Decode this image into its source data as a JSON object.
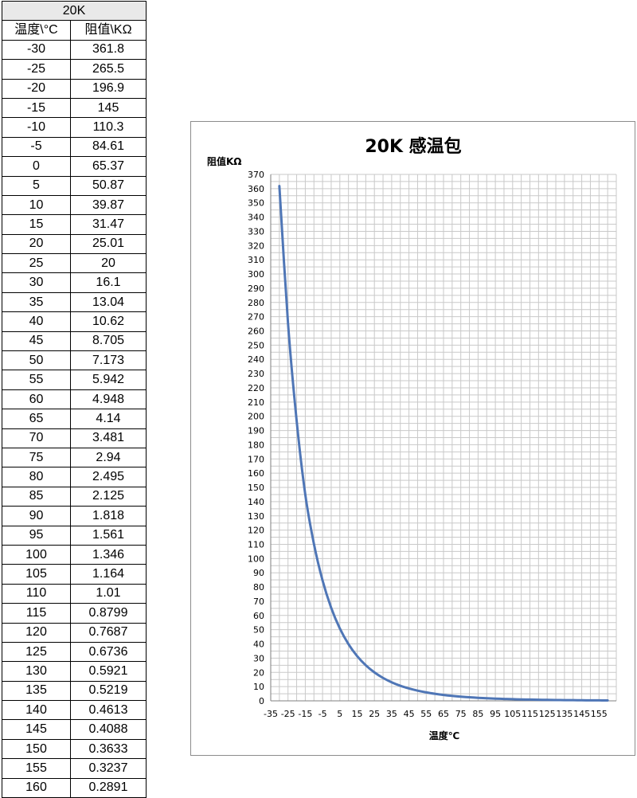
{
  "table": {
    "title": "20K",
    "headers": [
      "温度\\°C",
      "阻值\\KΩ"
    ],
    "rows": [
      [
        "-30",
        "361.8"
      ],
      [
        "-25",
        "265.5"
      ],
      [
        "-20",
        "196.9"
      ],
      [
        "-15",
        "145"
      ],
      [
        "-10",
        "110.3"
      ],
      [
        "-5",
        "84.61"
      ],
      [
        "0",
        "65.37"
      ],
      [
        "5",
        "50.87"
      ],
      [
        "10",
        "39.87"
      ],
      [
        "15",
        "31.47"
      ],
      [
        "20",
        "25.01"
      ],
      [
        "25",
        "20"
      ],
      [
        "30",
        "16.1"
      ],
      [
        "35",
        "13.04"
      ],
      [
        "40",
        "10.62"
      ],
      [
        "45",
        "8.705"
      ],
      [
        "50",
        "7.173"
      ],
      [
        "55",
        "5.942"
      ],
      [
        "60",
        "4.948"
      ],
      [
        "65",
        "4.14"
      ],
      [
        "70",
        "3.481"
      ],
      [
        "75",
        "2.94"
      ],
      [
        "80",
        "2.495"
      ],
      [
        "85",
        "2.125"
      ],
      [
        "90",
        "1.818"
      ],
      [
        "95",
        "1.561"
      ],
      [
        "100",
        "1.346"
      ],
      [
        "105",
        "1.164"
      ],
      [
        "110",
        "1.01"
      ],
      [
        "115",
        "0.8799"
      ],
      [
        "120",
        "0.7687"
      ],
      [
        "125",
        "0.6736"
      ],
      [
        "130",
        "0.5921"
      ],
      [
        "135",
        "0.5219"
      ],
      [
        "140",
        "0.4613"
      ],
      [
        "145",
        "0.4088"
      ],
      [
        "150",
        "0.3633"
      ],
      [
        "155",
        "0.3237"
      ],
      [
        "160",
        "0.2891"
      ]
    ]
  },
  "chart_data": {
    "type": "line",
    "title": "20K 感温包",
    "xlabel": "温度℃",
    "ylabel": "阻值KΩ",
    "xlim": [
      -35,
      165
    ],
    "ylim": [
      0,
      370
    ],
    "y_tick_step": 10,
    "x_ticks": [
      -35,
      -25,
      -15,
      -5,
      5,
      15,
      25,
      35,
      45,
      55,
      65,
      75,
      85,
      95,
      105,
      115,
      125,
      135,
      145,
      155
    ],
    "grid": true,
    "line_color": "#4f76b6",
    "x": [
      -30,
      -25,
      -20,
      -15,
      -10,
      -5,
      0,
      5,
      10,
      15,
      20,
      25,
      30,
      35,
      40,
      45,
      50,
      55,
      60,
      65,
      70,
      75,
      80,
      85,
      90,
      95,
      100,
      105,
      110,
      115,
      120,
      125,
      130,
      135,
      140,
      145,
      150,
      155,
      160
    ],
    "y": [
      361.8,
      265.5,
      196.9,
      145,
      110.3,
      84.61,
      65.37,
      50.87,
      39.87,
      31.47,
      25.01,
      20,
      16.1,
      13.04,
      10.62,
      8.705,
      7.173,
      5.942,
      4.948,
      4.14,
      3.481,
      2.94,
      2.495,
      2.125,
      1.818,
      1.561,
      1.346,
      1.164,
      1.01,
      0.8799,
      0.7687,
      0.6736,
      0.5921,
      0.5219,
      0.4613,
      0.4088,
      0.3633,
      0.3237,
      0.2891
    ]
  }
}
